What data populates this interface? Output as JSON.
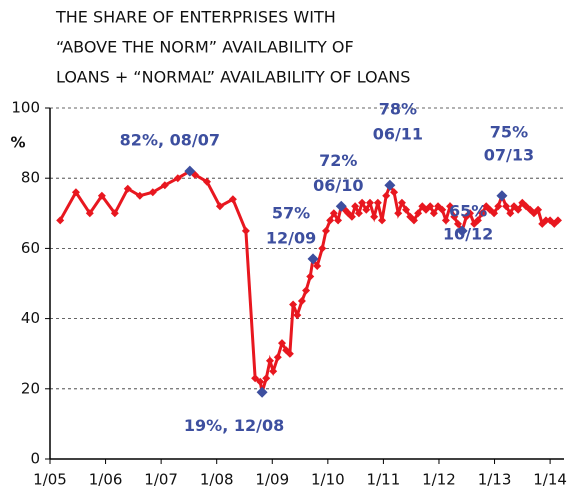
{
  "chart_data": {
    "type": "line",
    "title": [
      "THE SHARE OF ENTERPRISES WITH",
      "“ABOVE THE NORM” AVAILABILITY OF",
      "LOANS + “NORMAL” AVAILABILITY OF LOANS"
    ],
    "y_label": "%",
    "x": [
      2.2,
      5.6,
      8.6,
      11.2,
      14.0,
      16.8,
      19.4,
      22.2,
      24.8,
      27.6,
      30.2,
      31.3,
      33.9,
      36.7,
      39.5,
      42.3,
      44.3,
      45.4,
      45.8,
      46.7,
      47.5,
      48.2,
      49.2,
      50.1,
      51.0,
      51.8,
      52.5,
      53.4,
      54.4,
      55.3,
      56.2,
      56.8,
      57.7,
      58.8,
      59.6,
      60.5,
      61.3,
      62.2,
      62.9,
      63.7,
      64.4,
      65.2,
      65.9,
      66.7,
      67.4,
      68.3,
      69.1,
      70.0,
      70.8,
      71.7,
      72.6,
      73.4,
      74.3,
      75.2,
      76.0,
      76.9,
      77.8,
      78.6,
      79.5,
      80.4,
      81.2,
      82.1,
      82.9,
      83.8,
      84.7,
      85.5,
      86.4,
      87.3,
      88.1,
      89.0,
      89.9,
      90.7,
      91.6,
      92.4,
      93.3,
      94.2,
      95.0,
      95.9,
      96.8,
      97.6,
      98.5,
      99.4,
      100.2,
      101.1,
      102.0,
      102.8,
      103.7,
      104.5,
      105.4,
      106.3,
      107.1,
      108.0,
      108.9,
      109.7
    ],
    "series": [
      {
        "color": "#e8171f",
        "values": [
          68,
          76,
          70,
          75,
          70,
          77,
          75,
          76,
          78,
          80,
          82,
          81,
          79,
          72,
          74,
          65,
          23,
          22,
          19,
          23,
          28,
          25,
          29,
          33,
          31,
          30,
          44,
          41,
          45,
          48,
          52,
          57,
          55,
          60,
          65,
          68,
          70,
          68,
          72,
          71,
          70,
          69,
          72,
          70,
          73,
          71,
          73,
          69,
          73,
          68,
          75,
          78,
          76,
          70,
          73,
          71,
          69,
          68,
          70,
          72,
          71,
          72,
          70,
          72,
          71,
          68,
          72,
          69,
          67,
          65,
          69,
          70,
          67,
          68,
          70,
          72,
          71,
          70,
          72,
          75,
          72,
          70,
          72,
          71,
          73,
          72,
          71,
          70,
          71,
          67,
          68,
          68,
          67,
          68
        ]
      }
    ],
    "annotations": [
      {
        "text": [
          "82%, 08/07"
        ],
        "x": 30.2,
        "y": 82
      },
      {
        "text": [
          "19%, 12/08"
        ],
        "x": 45.8,
        "y": 19
      },
      {
        "text": [
          "57%",
          "12/09"
        ],
        "x": 56.8,
        "y": 57
      },
      {
        "text": [
          "72%",
          "06/10"
        ],
        "x": 62.9,
        "y": 72
      },
      {
        "text": [
          "78%",
          "06/11"
        ],
        "x": 73.4,
        "y": 78
      },
      {
        "text": [
          "65%",
          "10/12"
        ],
        "x": 89.0,
        "y": 65
      },
      {
        "text": [
          "75%",
          "07/13"
        ],
        "x": 97.6,
        "y": 75
      }
    ],
    "marker_color": "#3d4f9f",
    "xlim": [
      0,
      111
    ],
    "xticks": [
      {
        "value": 0,
        "label": "1/05"
      },
      {
        "value": 12,
        "label": "1/06"
      },
      {
        "value": 24,
        "label": "1/07"
      },
      {
        "value": 36,
        "label": "1/08"
      },
      {
        "value": 48,
        "label": "1/09"
      },
      {
        "value": 60,
        "label": "1/10"
      },
      {
        "value": 72,
        "label": "1/11"
      },
      {
        "value": 84,
        "label": "1/12"
      },
      {
        "value": 96,
        "label": "1/13"
      },
      {
        "value": 108,
        "label": "1/14"
      }
    ],
    "ylim": [
      0,
      100
    ],
    "yticks": [
      0,
      20,
      40,
      60,
      80,
      100
    ],
    "grid": true
  }
}
